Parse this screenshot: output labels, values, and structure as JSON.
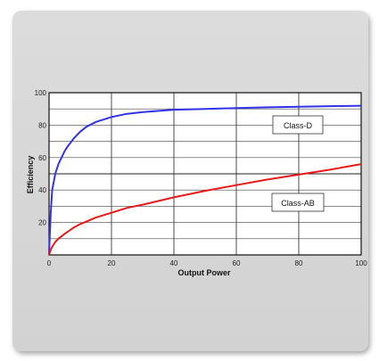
{
  "chart_data": {
    "type": "line",
    "xlabel": "Output Power",
    "ylabel": "Efficiency",
    "xlim": [
      0,
      100
    ],
    "ylim": [
      0,
      100
    ],
    "x_ticks": [
      0,
      20,
      40,
      60,
      80,
      100
    ],
    "y_ticks": [
      20,
      40,
      60,
      80,
      100
    ],
    "grid": true,
    "series": [
      {
        "name": "Class-D",
        "color": "#3333e6",
        "x": [
          0,
          0.5,
          1,
          2,
          3,
          4,
          5,
          6,
          8,
          10,
          12,
          15,
          20,
          25,
          30,
          40,
          50,
          60,
          70,
          80,
          90,
          100
        ],
        "y": [
          0,
          25,
          40,
          50,
          56,
          60,
          64,
          67,
          72,
          76,
          79,
          82,
          85,
          87,
          88,
          89.5,
          90,
          90.5,
          91,
          91.3,
          91.7,
          92
        ]
      },
      {
        "name": "Class-AB",
        "color": "#e61a1a",
        "x": [
          0,
          0.5,
          1,
          2,
          3,
          5,
          8,
          10,
          15,
          20,
          25,
          30,
          40,
          50,
          60,
          70,
          80,
          90,
          100
        ],
        "y": [
          0,
          3,
          5,
          8,
          10,
          13,
          17,
          19,
          23,
          26,
          29,
          31,
          35.5,
          39.5,
          43,
          46.5,
          49.5,
          52.5,
          56
        ]
      }
    ]
  }
}
